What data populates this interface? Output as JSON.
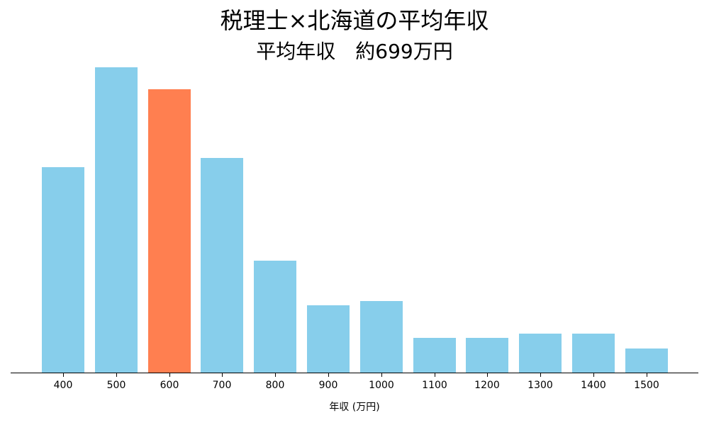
{
  "chart_data": {
    "type": "bar",
    "title": "税理士×北海道の平均年収",
    "subtitle": "平均年収　約699万円",
    "xlabel": "年収 (万円)",
    "ylabel": "",
    "categories": [
      "400",
      "500",
      "600",
      "700",
      "800",
      "900",
      "1000",
      "1100",
      "1200",
      "1300",
      "1400",
      "1500"
    ],
    "values": [
      290,
      431,
      400,
      303,
      158,
      95,
      101,
      49,
      49,
      55,
      55,
      34
    ],
    "value_note": "relative bar heights (no y-axis shown)",
    "highlight_category": "600",
    "colors": {
      "default": "#87ceeb",
      "highlight": "#ff7f50"
    },
    "grid": false,
    "legend": null
  },
  "header": {
    "title": "税理士×北海道の平均年収",
    "subtitle": "平均年収　約699万円"
  },
  "axis": {
    "xlabel": "年収 (万円)"
  }
}
